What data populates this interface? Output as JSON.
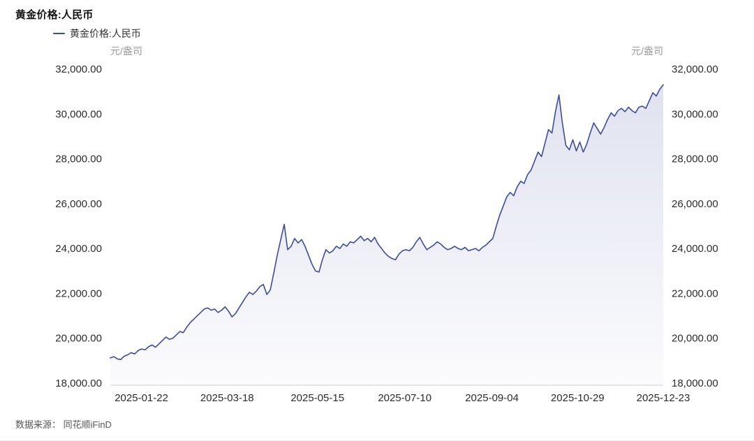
{
  "page": {
    "title": "黄金价格:人民币",
    "source_note": "数据来源： 同花顺iFinD"
  },
  "chart_data": {
    "type": "area",
    "title": "黄金价格:人民币",
    "legend": [
      {
        "name": "黄金价格:人民币",
        "color": "#3E4A9E"
      }
    ],
    "y_unit_left": "元/盎司",
    "y_unit_right": "元/盎司",
    "ylim": [
      18000,
      32000
    ],
    "y_ticks": [
      18000,
      20000,
      22000,
      24000,
      26000,
      28000,
      30000,
      32000
    ],
    "y_tick_labels": [
      "18,000.00",
      "20,000.00",
      "22,000.00",
      "24,000.00",
      "26,000.00",
      "28,000.00",
      "30,000.00",
      "32,000.00"
    ],
    "x_start": "2025-01-02",
    "x_end": "2025-12-23",
    "x_ticks": [
      "2025-01-22",
      "2025-03-18",
      "2025-05-15",
      "2025-07-10",
      "2025-09-04",
      "2025-10-29",
      "2025-12-23"
    ],
    "line_color": "#3E4A9E",
    "fill_top": "rgba(62,74,158,0.16)",
    "fill_bottom": "rgba(62,74,158,0.02)",
    "grid": false,
    "legend_position": "top-left",
    "values": [
      19120,
      19180,
      19080,
      19050,
      19200,
      19260,
      19360,
      19300,
      19450,
      19520,
      19480,
      19620,
      19700,
      19600,
      19750,
      19900,
      20050,
      19950,
      20000,
      20150,
      20300,
      20250,
      20500,
      20700,
      20850,
      21000,
      21150,
      21300,
      21350,
      21250,
      21300,
      21150,
      21250,
      21400,
      21200,
      20950,
      21100,
      21350,
      21600,
      21850,
      22050,
      21950,
      22100,
      22300,
      22400,
      21950,
      22150,
      22900,
      23700,
      24400,
      25080,
      23950,
      24100,
      24450,
      24250,
      24400,
      24100,
      23700,
      23300,
      23000,
      22950,
      23500,
      23950,
      23800,
      23900,
      24100,
      24000,
      24200,
      24100,
      24300,
      24250,
      24400,
      24550,
      24350,
      24450,
      24300,
      24500,
      24200,
      24000,
      23800,
      23650,
      23550,
      23500,
      23750,
      23900,
      23950,
      23900,
      24050,
      24300,
      24500,
      24200,
      23950,
      24050,
      24150,
      24300,
      24200,
      24050,
      23950,
      24000,
      24100,
      24000,
      23950,
      24050,
      23900,
      23950,
      24000,
      23900,
      24050,
      24150,
      24300,
      24450,
      25000,
      25500,
      25900,
      26300,
      26500,
      26350,
      26750,
      27000,
      26900,
      27300,
      27500,
      27900,
      28300,
      28100,
      28700,
      29300,
      29150,
      30100,
      30850,
      29600,
      28600,
      28400,
      28850,
      28350,
      28750,
      28300,
      28650,
      29150,
      29600,
      29350,
      29100,
      29400,
      29750,
      30050,
      29900,
      30150,
      30250,
      30100,
      30300,
      30150,
      30050,
      30300,
      30350,
      30250,
      30600,
      30950,
      30800,
      31100,
      31300
    ]
  }
}
